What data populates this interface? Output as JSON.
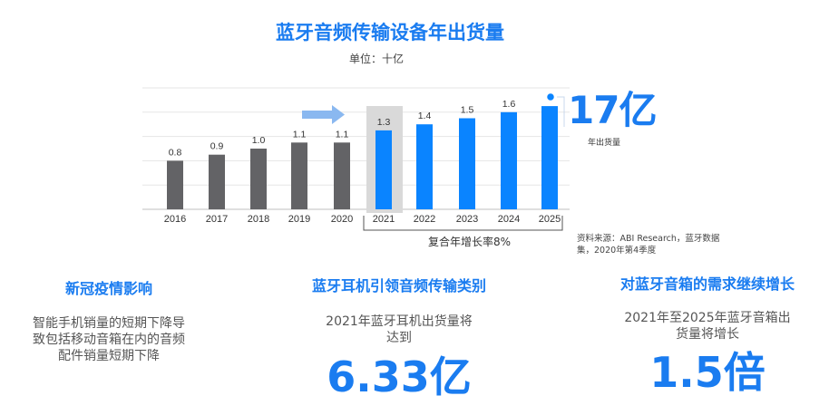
{
  "chart_data": {
    "type": "bar",
    "title": "蓝牙音频传输设备年出货量",
    "unit_label": "单位：十亿",
    "categories": [
      "2016",
      "2017",
      "2018",
      "2019",
      "2020",
      "2021",
      "2022",
      "2023",
      "2024",
      "2025"
    ],
    "values": [
      0.8,
      0.9,
      1.0,
      1.1,
      1.1,
      1.3,
      1.4,
      1.5,
      1.6,
      1.7
    ],
    "value_labels": [
      "0.8",
      "0.9",
      "1.0",
      "1.1",
      "1.1",
      "1.3",
      "1.4",
      "1.5",
      "1.6",
      ""
    ],
    "historical_color": "#636366",
    "forecast_color": "#0a84ff",
    "highlight_color": "#d9d9d9",
    "forecast_start_index": 5,
    "grid": true,
    "ylim": [
      0,
      2.0
    ]
  },
  "callout": {
    "big_number": "17亿",
    "caption": "年出货量"
  },
  "cagr_label": "复合年增长率8%",
  "source_text": "资料来源：ABI Research，蓝牙数据集，2020年第4季度",
  "columns": [
    {
      "title": "新冠疫情影响",
      "text_lines": [
        "智能手机销量的短期下降导",
        "致包括移动音箱在内的音频",
        "配件销量短期下降"
      ]
    },
    {
      "title": "蓝牙耳机引领音频传输类别",
      "text_lines": [
        "2021年蓝牙耳机出货量将",
        "达到"
      ],
      "big": "6.33亿"
    },
    {
      "title": "对蓝牙音箱的需求继续增长",
      "text_lines": [
        "2021年至2025年蓝牙音箱出",
        "货量将增长"
      ],
      "big": "1.5倍"
    }
  ]
}
